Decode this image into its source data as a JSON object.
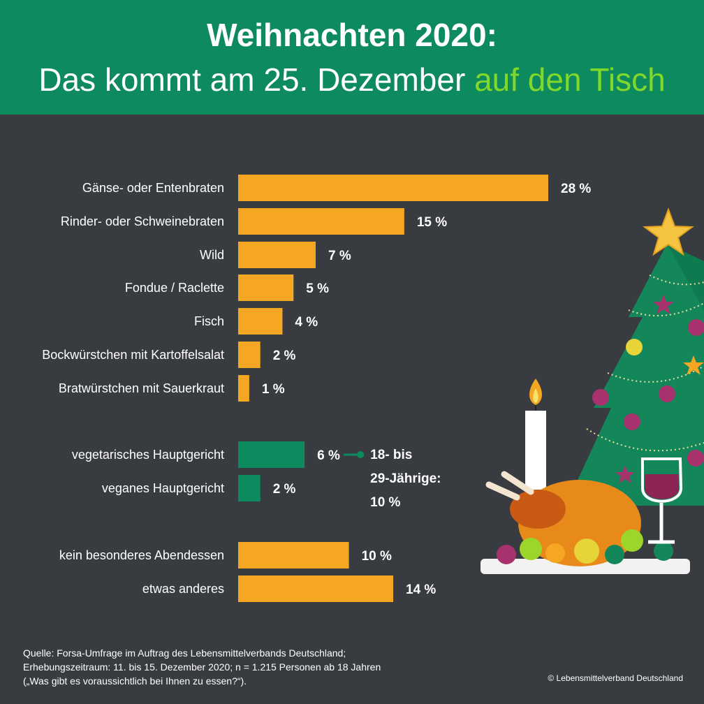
{
  "header": {
    "title_line1": "Weihnachten 2020:",
    "title_line2_main": "Das kommt am 25. Dezember ",
    "title_line2_accent": "auf den Tisch"
  },
  "colors": {
    "background": "#383b40",
    "header": "#0e8a5f",
    "accent_text": "#7fd82a",
    "bar_orange": "#f5a623",
    "bar_green": "#0e8a5f"
  },
  "chart_data": {
    "type": "bar",
    "orientation": "horizontal",
    "unit": "%",
    "xlim": [
      0,
      28
    ],
    "grid": false,
    "categories": [
      "Gänse- oder Entenbraten",
      "Rinder- oder Schweinebraten",
      "Wild",
      "Fondue / Raclette",
      "Fisch",
      "Bockwürstchen mit Kartoffelsalat",
      "Bratwürstchen mit Sauerkraut",
      "vegetarisches Hauptgericht",
      "veganes Hauptgericht",
      "kein besonderes Abendessen",
      "etwas anderes"
    ],
    "values": [
      28,
      15,
      7,
      5,
      4,
      2,
      1,
      6,
      2,
      10,
      14
    ],
    "value_labels": [
      "28 %",
      "15 %",
      "7 %",
      "5 %",
      "4 %",
      "2 %",
      "1 %",
      "6 %",
      "2 %",
      "10 %",
      "14 %"
    ],
    "groups": [
      "orange",
      "orange",
      "orange",
      "orange",
      "orange",
      "orange",
      "orange",
      "green",
      "green",
      "orange",
      "orange"
    ],
    "annotation": {
      "category": "vegetarisches Hauptgericht",
      "lines": [
        "18- bis",
        "29-Jährige:",
        "10 %"
      ]
    }
  },
  "illustration": {
    "icons": [
      "christmas-tree-icon",
      "star-icon",
      "candle-icon",
      "roast-goose-icon",
      "wine-glass-icon"
    ]
  },
  "footer": {
    "source_lines": [
      "Quelle: Forsa-Umfrage im Auftrag des Lebensmittelverbands Deutschland;",
      "Erhebungszeitraum: 11. bis 15. Dezember 2020; n = 1.215 Personen ab 18 Jahren",
      "(„Was gibt es voraussichtlich bei Ihnen zu essen?“)."
    ],
    "copyright": "© Lebensmittelverband Deutschland"
  }
}
